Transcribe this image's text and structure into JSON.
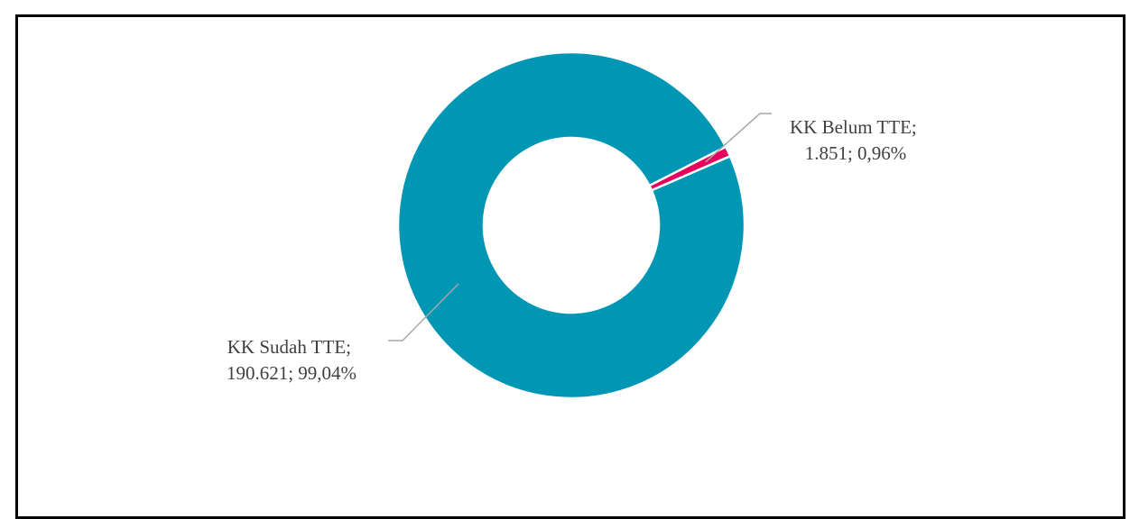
{
  "chart_data": {
    "type": "pie",
    "variant": "donut",
    "title": "",
    "slices": [
      {
        "category": "KK Belum TTE",
        "value": 1851,
        "percent": 0.96,
        "color": "#E6005C",
        "label_line1": "KK Belum TTE;",
        "label_line2": "1.851; 0,96%"
      },
      {
        "category": "KK Sudah TTE",
        "value": 190621,
        "percent": 99.04,
        "color": "#0096B4",
        "label_line1": "KK Sudah TTE;",
        "label_line2": "190.621; 99,04%"
      }
    ],
    "legend": "none",
    "leader_line_color": "#A6A6A6"
  }
}
